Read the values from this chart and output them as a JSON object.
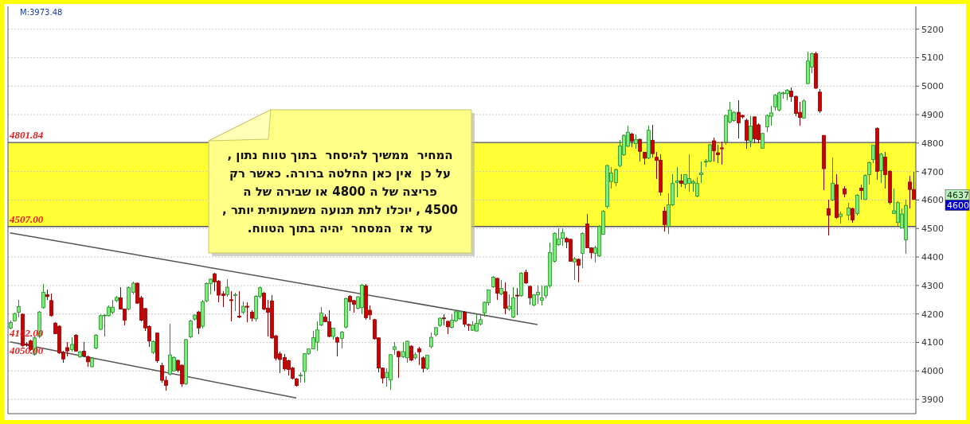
{
  "chart_data": {
    "type": "candlestick",
    "categories": [
      null,
      null,
      null,
      null,
      null,
      null,
      null,
      null,
      null,
      null,
      null,
      null,
      null,
      null,
      null,
      null,
      null,
      null,
      null,
      null,
      null,
      null,
      null,
      null,
      null,
      null,
      null,
      null,
      null,
      null,
      null,
      null,
      null,
      null,
      null,
      null,
      null,
      null,
      null,
      null,
      null,
      null,
      null,
      null,
      null,
      null,
      null,
      null,
      null,
      null,
      null,
      null,
      null,
      null,
      null,
      null,
      null,
      null,
      null,
      null,
      null,
      null,
      null,
      null,
      null,
      null,
      null,
      null,
      null,
      null,
      null,
      null,
      null,
      null,
      null,
      null,
      null,
      null,
      null,
      null,
      null,
      null,
      null,
      null,
      null,
      null,
      null,
      null,
      null,
      null,
      null,
      null,
      null,
      null,
      null,
      null,
      null,
      null,
      null,
      null,
      null,
      null,
      null,
      null,
      null,
      null,
      null,
      null,
      null,
      null,
      null,
      null,
      null,
      null,
      null,
      null,
      null,
      null,
      null,
      null,
      null,
      null,
      null,
      null,
      null,
      null,
      null,
      null,
      null,
      null,
      null,
      null,
      null,
      null,
      null,
      null,
      null,
      null,
      null,
      null,
      null,
      null,
      null,
      null,
      null,
      null,
      null,
      null,
      null,
      null,
      null,
      null,
      null,
      null,
      null,
      null,
      null,
      null,
      null,
      null,
      null,
      null,
      null,
      null,
      null,
      null,
      null,
      null,
      null,
      null,
      null,
      null,
      null,
      null,
      null,
      null,
      null,
      null,
      null,
      null,
      null,
      null,
      null,
      null,
      null,
      null,
      null,
      null,
      null,
      null,
      null,
      null,
      null,
      null,
      null,
      null,
      null,
      null,
      null,
      null,
      null,
      null,
      null,
      null,
      null,
      null,
      null,
      null,
      null,
      null,
      null,
      null,
      null,
      null,
      null,
      null,
      null,
      null,
      null,
      null,
      null,
      null
    ],
    "ohlc": [
      [
        4150,
        4177,
        4145,
        4170
      ],
      [
        4176,
        4206,
        4173,
        4201
      ],
      [
        4206,
        4248,
        4187,
        4226
      ],
      [
        4199,
        4201,
        4084,
        4089
      ],
      [
        4095,
        4100,
        4085,
        4093
      ],
      [
        4105,
        4110,
        4070,
        4075
      ],
      [
        4058,
        4120,
        4055,
        4116
      ],
      [
        4121,
        4210,
        4115,
        4207
      ],
      [
        4222,
        4306,
        4220,
        4276
      ],
      [
        4268,
        4285,
        4250,
        4261
      ],
      [
        4247,
        4272,
        4190,
        4194
      ],
      [
        4168,
        4170,
        4128,
        4131
      ],
      [
        4157,
        4160,
        4060,
        4064
      ],
      [
        4065,
        4070,
        4030,
        4042
      ],
      [
        4082,
        4100,
        4050,
        4070
      ],
      [
        4075,
        4118,
        4068,
        4093
      ],
      [
        4125,
        4128,
        4068,
        4070
      ],
      [
        4050,
        4070,
        4045,
        4067
      ],
      [
        4069,
        4100,
        4048,
        4052
      ],
      [
        4050,
        4054,
        4015,
        4032
      ],
      [
        4015,
        4048,
        4012,
        4045
      ],
      [
        4080,
        4128,
        4075,
        4125
      ],
      [
        4146,
        4198,
        4143,
        4194
      ],
      [
        4195,
        4200,
        4120,
        4196
      ],
      [
        4194,
        4230,
        4190,
        4224
      ],
      [
        4206,
        4250,
        4200,
        4224
      ],
      [
        4247,
        4262,
        4240,
        4258
      ],
      [
        4257,
        4295,
        4215,
        4217
      ],
      [
        4217,
        4220,
        4160,
        4178
      ],
      [
        4217,
        4297,
        4212,
        4293
      ],
      [
        4276,
        4315,
        4270,
        4308
      ],
      [
        4308,
        4310,
        4236,
        4238
      ],
      [
        4257,
        4262,
        4175,
        4178
      ],
      [
        4219,
        4222,
        4140,
        4151
      ],
      [
        4156,
        4160,
        4085,
        4105
      ],
      [
        4065,
        4107,
        4060,
        4103
      ],
      [
        4133,
        4135,
        4030,
        4036
      ],
      [
        4019,
        4030,
        3960,
        3967
      ],
      [
        3967,
        3980,
        3930,
        3949
      ],
      [
        3989,
        4165,
        3985,
        4056
      ],
      [
        4000,
        4050,
        3998,
        4047
      ],
      [
        4037,
        4040,
        3995,
        4002
      ],
      [
        4020,
        4022,
        3945,
        3955
      ],
      [
        3955,
        4112,
        3950,
        4110
      ],
      [
        4120,
        4180,
        4115,
        4175
      ],
      [
        4182,
        4200,
        4178,
        4196
      ],
      [
        4207,
        4210,
        4130,
        4151
      ],
      [
        4157,
        4248,
        4150,
        4243
      ],
      [
        4246,
        4310,
        4240,
        4307
      ],
      [
        4307,
        4325,
        4270,
        4322
      ],
      [
        4341,
        4345,
        4280,
        4313
      ],
      [
        4315,
        4318,
        4240,
        4266
      ],
      [
        4270,
        4280,
        4225,
        4265
      ],
      [
        4268,
        4322,
        4260,
        4294
      ],
      [
        4250,
        4280,
        4175,
        4247
      ],
      [
        4265,
        4275,
        4210,
        4268
      ],
      [
        4192,
        4280,
        4185,
        4189
      ],
      [
        4206,
        4245,
        4200,
        4227
      ],
      [
        4227,
        4240,
        4170,
        4224
      ],
      [
        4206,
        4212,
        4175,
        4185
      ],
      [
        4183,
        4265,
        4175,
        4262
      ],
      [
        4262,
        4297,
        4255,
        4292
      ],
      [
        4273,
        4278,
        4212,
        4217
      ],
      [
        4220,
        4250,
        4120,
        4206
      ],
      [
        4246,
        4266,
        4112,
        4116
      ],
      [
        4123,
        4126,
        4036,
        4045
      ],
      [
        4060,
        4068,
        3992,
        4040
      ],
      [
        4047,
        4060,
        4000,
        4007
      ],
      [
        4036,
        4040,
        3985,
        4005
      ],
      [
        4010,
        4015,
        3970,
        3974
      ],
      [
        3972,
        3975,
        3945,
        3949
      ],
      [
        3983,
        3995,
        3960,
        3986
      ],
      [
        3998,
        4063,
        3960,
        4060
      ],
      [
        4060,
        4080,
        4058,
        4077
      ],
      [
        4077,
        4140,
        4075,
        4117
      ],
      [
        4101,
        4175,
        4070,
        4144
      ],
      [
        4161,
        4223,
        4157,
        4203
      ],
      [
        4189,
        4200,
        4170,
        4173
      ],
      [
        4173,
        4212,
        4118,
        4121
      ],
      [
        4121,
        4153,
        4110,
        4150
      ],
      [
        4117,
        4120,
        4050,
        4101
      ],
      [
        4114,
        4140,
        4080,
        4136
      ],
      [
        4154,
        4258,
        4150,
        4254
      ],
      [
        4262,
        4265,
        4210,
        4243
      ],
      [
        4247,
        4250,
        4205,
        4234
      ],
      [
        4220,
        4263,
        4217,
        4260
      ],
      [
        4222,
        4305,
        4200,
        4301
      ],
      [
        4299,
        4305,
        4180,
        4187
      ],
      [
        4213,
        4230,
        4180,
        4197
      ],
      [
        4180,
        4183,
        4110,
        4113
      ],
      [
        4116,
        4118,
        3995,
        4010
      ],
      [
        4010,
        4012,
        3955,
        3975
      ],
      [
        3977,
        4010,
        3945,
        3995
      ],
      [
        3968,
        4060,
        3935,
        4057
      ],
      [
        4076,
        4100,
        4058,
        4085
      ],
      [
        4068,
        4070,
        3975,
        4050
      ],
      [
        4050,
        4100,
        4045,
        4068
      ],
      [
        4046,
        4106,
        4030,
        4104
      ],
      [
        4087,
        4090,
        4035,
        4038
      ],
      [
        4046,
        4065,
        4040,
        4057
      ],
      [
        4078,
        4085,
        4020,
        4067
      ],
      [
        4046,
        4050,
        3995,
        4009
      ],
      [
        4009,
        4058,
        4005,
        4055
      ],
      [
        4085,
        4135,
        4080,
        4118
      ],
      [
        4127,
        4155,
        4120,
        4152
      ],
      [
        4160,
        4188,
        4155,
        4185
      ],
      [
        4186,
        4200,
        4160,
        4184
      ],
      [
        4174,
        4177,
        4130,
        4155
      ],
      [
        4153,
        4200,
        4148,
        4178
      ],
      [
        4176,
        4212,
        4172,
        4208
      ],
      [
        4183,
        4210,
        4180,
        4208
      ],
      [
        4206,
        4210,
        4155,
        4164
      ],
      [
        4163,
        4165,
        4140,
        4160
      ],
      [
        4143,
        4175,
        4140,
        4162
      ],
      [
        4140,
        4200,
        4138,
        4167
      ],
      [
        4165,
        4200,
        4160,
        4180
      ],
      [
        4204,
        4244,
        4190,
        4241
      ],
      [
        4239,
        4287,
        4230,
        4285
      ],
      [
        4295,
        4332,
        4290,
        4329
      ],
      [
        4325,
        4328,
        4250,
        4273
      ],
      [
        4270,
        4318,
        4265,
        4290
      ],
      [
        4278,
        4310,
        4200,
        4220
      ],
      [
        4217,
        4270,
        4210,
        4227
      ],
      [
        4189,
        4295,
        4185,
        4257
      ],
      [
        4266,
        4290,
        4195,
        4263
      ],
      [
        4264,
        4346,
        4260,
        4343
      ],
      [
        4346,
        4355,
        4305,
        4309
      ],
      [
        4297,
        4300,
        4232,
        4257
      ],
      [
        4231,
        4270,
        4228,
        4267
      ],
      [
        4267,
        4300,
        4235,
        4276
      ],
      [
        4248,
        4300,
        4230,
        4257
      ],
      [
        4264,
        4300,
        4255,
        4297
      ],
      [
        4299,
        4450,
        4290,
        4416
      ],
      [
        4385,
        4486,
        4380,
        4483
      ],
      [
        4443,
        4500,
        4440,
        4464
      ],
      [
        4465,
        4500,
        4440,
        4486
      ],
      [
        4465,
        4470,
        4430,
        4453
      ],
      [
        4462,
        4465,
        4385,
        4385
      ],
      [
        4383,
        4400,
        4320,
        4394
      ],
      [
        4392,
        4395,
        4310,
        4371
      ],
      [
        4413,
        4487,
        4360,
        4483
      ],
      [
        4516,
        4550,
        4430,
        4432
      ],
      [
        4432,
        4435,
        4395,
        4415
      ],
      [
        4413,
        4440,
        4380,
        4432
      ],
      [
        4404,
        4512,
        4400,
        4507
      ],
      [
        4480,
        4565,
        4478,
        4560
      ],
      [
        4577,
        4725,
        4570,
        4721
      ],
      [
        4665,
        4715,
        4640,
        4695
      ],
      [
        4661,
        4710,
        4650,
        4707
      ],
      [
        4721,
        4812,
        4715,
        4790
      ],
      [
        4759,
        4830,
        4755,
        4827
      ],
      [
        4789,
        4860,
        4785,
        4838
      ],
      [
        4832,
        4835,
        4785,
        4807
      ],
      [
        4798,
        4830,
        4780,
        4813
      ],
      [
        4813,
        4815,
        4735,
        4771
      ],
      [
        4768,
        4770,
        4725,
        4747
      ],
      [
        4747,
        4860,
        4745,
        4845
      ],
      [
        4810,
        4865,
        4750,
        4763
      ],
      [
        4750,
        4770,
        4675,
        4740
      ],
      [
        4740,
        4760,
        4615,
        4628
      ],
      [
        4561,
        4575,
        4490,
        4514
      ],
      [
        4507,
        4625,
        4480,
        4583
      ],
      [
        4583,
        4690,
        4580,
        4658
      ],
      [
        4662,
        4715,
        4610,
        4667
      ],
      [
        4667,
        4690,
        4645,
        4658
      ],
      [
        4656,
        4692,
        4640,
        4689
      ],
      [
        4659,
        4760,
        4630,
        4675
      ],
      [
        4659,
        4670,
        4630,
        4665
      ],
      [
        4614,
        4680,
        4610,
        4658
      ],
      [
        4689,
        4735,
        4660,
        4695
      ],
      [
        4735,
        4745,
        4715,
        4736
      ],
      [
        4736,
        4797,
        4733,
        4794
      ],
      [
        4808,
        4820,
        4735,
        4773
      ],
      [
        4766,
        4795,
        4730,
        4759
      ],
      [
        4783,
        4805,
        4725,
        4780
      ],
      [
        4804,
        4900,
        4795,
        4897
      ],
      [
        4874,
        4945,
        4870,
        4916
      ],
      [
        4879,
        4912,
        4875,
        4908
      ],
      [
        4908,
        4950,
        4815,
        4871
      ],
      [
        4897,
        4900,
        4885,
        4892
      ],
      [
        4880,
        4885,
        4780,
        4810
      ],
      [
        4807,
        4895,
        4785,
        4860
      ],
      [
        4892,
        4895,
        4800,
        4815
      ],
      [
        4864,
        4870,
        4800,
        4812
      ],
      [
        4782,
        4837,
        4780,
        4834
      ],
      [
        4857,
        4900,
        4840,
        4897
      ],
      [
        4894,
        4930,
        4860,
        4906
      ],
      [
        4927,
        4972,
        4915,
        4968
      ],
      [
        4916,
        4980,
        4910,
        4976
      ],
      [
        4974,
        4980,
        4955,
        4976
      ],
      [
        4973,
        4990,
        4950,
        4985
      ],
      [
        4983,
        4995,
        4945,
        4963
      ],
      [
        4964,
        4967,
        4895,
        4904
      ],
      [
        4908,
        4945,
        4860,
        4890
      ],
      [
        4888,
        4952,
        4885,
        4948
      ],
      [
        5009,
        5120,
        5005,
        5088
      ],
      [
        5067,
        5118,
        5045,
        5114
      ],
      [
        5114,
        5120,
        4990,
        4993
      ],
      [
        4979,
        4990,
        4905,
        4913
      ],
      [
        4827,
        4828,
        4635,
        4710
      ],
      [
        4570,
        4600,
        4475,
        4547
      ],
      [
        4600,
        4750,
        4595,
        4659
      ],
      [
        4654,
        4690,
        4535,
        4539
      ],
      [
        4542,
        4560,
        4518,
        4551
      ],
      [
        4639,
        4650,
        4610,
        4621
      ],
      [
        4547,
        4590,
        4530,
        4572
      ],
      [
        4570,
        4572,
        4520,
        4530
      ],
      [
        4553,
        4620,
        4545,
        4617
      ],
      [
        4642,
        4655,
        4600,
        4633
      ],
      [
        4602,
        4690,
        4600,
        4686
      ],
      [
        4689,
        4735,
        4655,
        4731
      ],
      [
        4742,
        4795,
        4730,
        4792
      ],
      [
        4852,
        4855,
        4670,
        4701
      ],
      [
        4703,
        4765,
        4660,
        4761
      ],
      [
        4751,
        4770,
        4640,
        4689
      ],
      [
        4701,
        4705,
        4585,
        4591
      ],
      [
        4553,
        4640,
        4550,
        4562
      ],
      [
        4521,
        4595,
        4510,
        4591
      ],
      [
        4502,
        4570,
        4500,
        4551
      ],
      [
        4460,
        4600,
        4410,
        4581
      ],
      [
        4663,
        4685,
        4570,
        4637
      ],
      [
        4637,
        4700,
        4600,
        4602
      ]
    ],
    "series": [
      {
        "type": "line",
        "color": "#555555",
        "values": [
          4485,
          null,
          null,
          null,
          null,
          null,
          null,
          null,
          null,
          null,
          null,
          null,
          null,
          null,
          null,
          null,
          null,
          null,
          null,
          null,
          null,
          null,
          null,
          null,
          null,
          null,
          null,
          null,
          null,
          null,
          null,
          null,
          null,
          null,
          null,
          null,
          null,
          null,
          null,
          null,
          null,
          null,
          null,
          null,
          null,
          null,
          null,
          null,
          null,
          null,
          null,
          null,
          null,
          null,
          null,
          null,
          null,
          null,
          null,
          null,
          null,
          null,
          null,
          null,
          null,
          null,
          null,
          null,
          null,
          null,
          null,
          null,
          null,
          null,
          null,
          null,
          null,
          null,
          null,
          null,
          null,
          null,
          null,
          null,
          null,
          null,
          null,
          null,
          null,
          null,
          null,
          null,
          null,
          null,
          null,
          null,
          null,
          null,
          null,
          null,
          null,
          null,
          null,
          null,
          null,
          null,
          null,
          null,
          null,
          null,
          null,
          null,
          null,
          null,
          null,
          null,
          null,
          null,
          null,
          null,
          null,
          null,
          null,
          null,
          null,
          null,
          null,
          null,
          null,
          4163,
          null,
          null,
          null,
          null,
          null,
          null,
          null,
          null,
          null,
          null,
          null,
          null,
          null,
          null,
          null,
          null,
          null,
          null,
          null,
          null,
          null,
          null,
          null,
          null,
          null,
          null,
          null,
          null,
          null,
          null,
          null,
          null,
          null,
          null,
          null,
          null,
          null,
          null,
          null,
          null,
          null,
          null,
          null,
          null,
          null,
          null,
          null,
          null,
          null,
          null,
          null,
          null,
          null,
          null,
          null,
          null,
          null,
          null,
          null,
          null,
          null,
          null,
          null,
          null,
          null,
          null,
          null,
          null,
          null,
          null,
          null,
          null,
          null,
          null,
          null,
          null,
          null,
          null,
          null,
          null,
          null,
          null,
          null,
          null,
          null,
          null,
          null,
          null,
          null,
          null,
          null,
          null
        ]
      },
      {
        "type": "line",
        "color": "#555555",
        "values": [
          4102,
          null,
          null,
          null,
          null,
          null,
          null,
          null,
          null,
          null,
          null,
          null,
          null,
          null,
          null,
          null,
          null,
          null,
          null,
          null,
          null,
          null,
          null,
          null,
          null,
          null,
          null,
          null,
          null,
          null,
          null,
          null,
          null,
          null,
          null,
          null,
          null,
          null,
          null,
          null,
          null,
          null,
          null,
          null,
          null,
          null,
          null,
          null,
          null,
          null,
          null,
          null,
          null,
          null,
          null,
          null,
          null,
          null,
          null,
          null,
          null,
          null,
          null,
          null,
          null,
          null,
          null,
          null,
          null,
          null,
          3905,
          null,
          null,
          null,
          null,
          null,
          null,
          null,
          null,
          null,
          null,
          null,
          null,
          null,
          null,
          null,
          null,
          null,
          null,
          null,
          null,
          null,
          null,
          null,
          null,
          null,
          null,
          null,
          null,
          null,
          null,
          null,
          null,
          null,
          null,
          null,
          null,
          null,
          null,
          null,
          null,
          null,
          null,
          null,
          null,
          null,
          null,
          null,
          null,
          null,
          null,
          null,
          null,
          null,
          null,
          null,
          null,
          null,
          null,
          null,
          null,
          null,
          null,
          null,
          null,
          null,
          null,
          null,
          null,
          null,
          null,
          null,
          null,
          null,
          null,
          null,
          null,
          null,
          null,
          null,
          null,
          null,
          null,
          null,
          null,
          null,
          null,
          null,
          null,
          null,
          null,
          null,
          null,
          null,
          null,
          null,
          null,
          null,
          null,
          null,
          null,
          null,
          null,
          null,
          null,
          null,
          null,
          null,
          null,
          null,
          null,
          null,
          null,
          null,
          null,
          null,
          null,
          null,
          null,
          null,
          null,
          null,
          null,
          null,
          null,
          null,
          null,
          null,
          null,
          null,
          null,
          null,
          null,
          null,
          null,
          null,
          null,
          null,
          null,
          null,
          null,
          null,
          null,
          null,
          null,
          null,
          null,
          null,
          null,
          null,
          null,
          null
        ]
      }
    ],
    "ylim": [
      3850,
      5280
    ],
    "yticks": [
      3900,
      4000,
      4100,
      4200,
      4300,
      4400,
      4500,
      4600,
      4700,
      4800,
      4900,
      5000,
      5100,
      5200
    ],
    "grid": "y",
    "ref_lines": [
      {
        "axis": "y",
        "value": 4801.84,
        "label": "4801.84",
        "color": "#555555"
      },
      {
        "axis": "y",
        "value": 4507,
        "label": "4507.00",
        "color": "#555555"
      }
    ],
    "bands": [
      {
        "axis": "y",
        "from": 4507,
        "to": 4801.84,
        "color": "#ffff33"
      }
    ],
    "annotations": [
      "M:3973.48",
      "המחיר  ממשיך להיסחר  בתוך טווח נתון ,\nעל כן  אין כאן החלטה ברורה. כאשר רק\nפריצה של ה 4800 או שבירה של ה\n4500 , יוכלו לתת תנועה משמעותית יותר ,\nעד אז  המסחר  יהיה בתוך הטווח.",
      {
        "text": "4102.00",
        "y": 4102
      },
      "4050.00",
      "4637",
      "4600"
    ]
  }
}
